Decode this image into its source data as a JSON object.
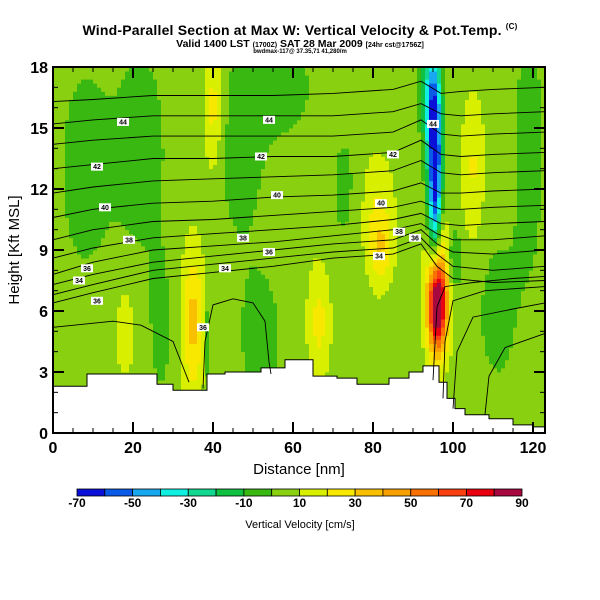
{
  "chart_data": {
    "type": "heatmap",
    "title": "Wind-Parallel Section at Max W: Vertical Velocity & Pot.Temp.",
    "title_suffix": "(C)",
    "subtitle": "Valid 1400 LST",
    "subtitle_paren": "(1700Z)",
    "subtitle_date": "SAT 28 Mar 2009",
    "subtitle_tail": "[24hr cst@1756Z]",
    "annotation": "bwdmax-117@ 37.35,71 41,280/m",
    "xlabel": "Distance [nm]",
    "ylabel": "Height [Kft MSL]",
    "xlim": [
      0,
      123
    ],
    "ylim": [
      0,
      18
    ],
    "xticks": [
      0,
      20,
      40,
      60,
      80,
      100,
      120
    ],
    "yticks": [
      0,
      3,
      6,
      9,
      12,
      15,
      18
    ],
    "colorbar": {
      "label": "Vertical Velocity [cm/s]",
      "levels": [
        -70,
        -60,
        -50,
        -40,
        -30,
        -20,
        -10,
        0,
        10,
        20,
        30,
        40,
        50,
        60,
        70,
        80,
        90
      ],
      "tick_labels": [
        "-70",
        "-50",
        "-30",
        "-10",
        "10",
        "30",
        "50",
        "70",
        "90"
      ],
      "colors": [
        "#0a10d8",
        "#0a5ae8",
        "#18a8f0",
        "#10f0e0",
        "#10d890",
        "#10c040",
        "#38b810",
        "#88d010",
        "#d8f000",
        "#f8e800",
        "#f8c000",
        "#f8a000",
        "#f87000",
        "#f84010",
        "#e80010",
        "#a80840"
      ]
    },
    "background_w": 5,
    "w_features": [
      {
        "name": "updraft-core",
        "x": 96,
        "z": 6.2,
        "sx": 1.6,
        "sz": 1.6,
        "w": 85
      },
      {
        "name": "updraft-plume",
        "x": 96.5,
        "z": 7.8,
        "sx": 2.2,
        "sz": 2.2,
        "w": 30
      },
      {
        "name": "downdraft-core",
        "x": 95.5,
        "z": 12.5,
        "sx": 1.2,
        "sz": 3.2,
        "w": -75
      },
      {
        "name": "downdraft-upper",
        "x": 94.5,
        "z": 16.5,
        "sx": 1.6,
        "sz": 2.0,
        "w": -40
      },
      {
        "name": "updraft-35nm",
        "x": 35,
        "z": 5.5,
        "sx": 2.0,
        "sz": 2.6,
        "w": 28
      },
      {
        "name": "updraft-66nm",
        "x": 66.5,
        "z": 5.5,
        "sx": 2.0,
        "sz": 2.0,
        "w": 18
      },
      {
        "name": "updraft-18nm",
        "x": 18,
        "z": 5,
        "sx": 1.6,
        "sz": 1.5,
        "w": 14
      },
      {
        "name": "updraft-105nm",
        "x": 105,
        "z": 13,
        "sx": 2.0,
        "sz": 2.5,
        "w": 16
      },
      {
        "name": "updraft-40nm-upper",
        "x": 40,
        "z": 16,
        "sx": 1.5,
        "sz": 2.2,
        "w": 20
      },
      {
        "name": "updraft-81nm",
        "x": 81,
        "z": 11,
        "sx": 3,
        "sz": 2,
        "w": 14
      },
      {
        "name": "updraft-81nm-low",
        "x": 82,
        "z": 9,
        "sx": 2,
        "sz": 1.3,
        "w": 18
      },
      {
        "name": "downdraft-20nm-upper",
        "x": 22,
        "z": 14,
        "sx": 5,
        "sz": 4,
        "w": -9
      },
      {
        "name": "downdraft-12nm-upper",
        "x": 8,
        "z": 13,
        "sx": 5,
        "sz": 4,
        "w": -9
      },
      {
        "name": "downdraft-52nm",
        "x": 52,
        "z": 4.5,
        "sx": 4,
        "sz": 2.5,
        "w": -9
      },
      {
        "name": "downdraft-48nm-upper",
        "x": 47,
        "z": 14,
        "sx": 5,
        "sz": 4,
        "w": -8
      },
      {
        "name": "downdraft-27nm",
        "x": 27,
        "z": 5,
        "sx": 2.5,
        "sz": 3,
        "w": -7
      },
      {
        "name": "downdraft-112nm",
        "x": 111,
        "z": 6,
        "sx": 4,
        "sz": 3,
        "w": -8
      },
      {
        "name": "downdraft-118nm-upper",
        "x": 119,
        "z": 14,
        "sx": 3,
        "sz": 5,
        "w": -9
      },
      {
        "name": "downdraft-60nm-top",
        "x": 58,
        "z": 17,
        "sx": 6,
        "sz": 2,
        "w": -8
      },
      {
        "name": "downdraft-72nm",
        "x": 73,
        "z": 12,
        "sx": 3,
        "sz": 2.5,
        "w": -7
      },
      {
        "name": "downdraft-37nm",
        "x": 38.5,
        "z": 4.5,
        "sx": 0.6,
        "sz": 1.3,
        "w": -20
      },
      {
        "name": "downdraft-100nm-mid",
        "x": 100,
        "z": 8.5,
        "sx": 1.4,
        "sz": 1.2,
        "w": -20
      }
    ],
    "terrain": {
      "x": [
        0,
        0,
        8.5,
        8.5,
        26,
        26,
        30,
        30,
        38.5,
        38.5,
        43,
        43,
        52,
        52,
        58,
        58,
        65,
        65,
        71,
        71,
        76,
        76,
        84,
        84,
        89,
        89,
        92.5,
        92.5,
        96.5,
        96.5,
        98.5,
        98.5,
        100.5,
        100.5,
        103,
        103,
        109,
        109,
        115,
        115,
        120,
        120,
        123
      ],
      "z": [
        2.2,
        2.3,
        2.3,
        2.9,
        2.9,
        2.4,
        2.4,
        2.1,
        2.1,
        2.9,
        2.9,
        3.0,
        3.0,
        3.2,
        3.2,
        3.6,
        3.6,
        2.8,
        2.8,
        2.7,
        2.7,
        2.4,
        2.4,
        2.7,
        2.7,
        3.0,
        3.0,
        3.3,
        3.3,
        2.5,
        2.5,
        1.7,
        1.7,
        1.2,
        1.2,
        0.9,
        0.9,
        0.7,
        0.7,
        0.4,
        0.4,
        0.3,
        0.3
      ]
    },
    "theta_contours": [
      {
        "label": "34",
        "pts": [
          [
            0,
            6.4
          ],
          [
            10,
            6.9
          ],
          [
            25,
            7.6
          ],
          [
            40,
            7.9
          ],
          [
            55,
            8.2
          ],
          [
            70,
            8.6
          ],
          [
            85,
            8.8
          ],
          [
            92,
            9.3
          ],
          [
            96,
            8.2
          ],
          [
            100,
            7.6
          ],
          [
            110,
            7.4
          ],
          [
            123,
            7.5
          ]
        ]
      },
      {
        "label": "",
        "pts": [
          [
            0,
            6.8
          ],
          [
            10,
            7.3
          ],
          [
            25,
            8.0
          ],
          [
            40,
            8.3
          ],
          [
            55,
            8.6
          ],
          [
            70,
            8.9
          ],
          [
            85,
            9.1
          ],
          [
            92,
            9.6
          ],
          [
            96,
            8.8
          ],
          [
            100,
            8.2
          ],
          [
            110,
            8.0
          ],
          [
            123,
            8.2
          ]
        ]
      },
      {
        "label": "36",
        "pts": [
          [
            0,
            7.3
          ],
          [
            10,
            7.8
          ],
          [
            25,
            8.4
          ],
          [
            40,
            8.7
          ],
          [
            55,
            9.0
          ],
          [
            70,
            9.3
          ],
          [
            85,
            9.5
          ],
          [
            92,
            10.0
          ],
          [
            96,
            9.3
          ],
          [
            100,
            8.9
          ],
          [
            110,
            8.8
          ],
          [
            123,
            9.0
          ]
        ]
      },
      {
        "label": "",
        "pts": [
          [
            0,
            7.8
          ],
          [
            10,
            8.4
          ],
          [
            25,
            9.0
          ],
          [
            40,
            9.2
          ],
          [
            55,
            9.4
          ],
          [
            70,
            9.7
          ],
          [
            85,
            10.0
          ],
          [
            92,
            10.3
          ],
          [
            96,
            9.8
          ],
          [
            100,
            9.5
          ],
          [
            110,
            9.5
          ],
          [
            123,
            9.7
          ]
        ]
      },
      {
        "label": "38",
        "pts": [
          [
            0,
            8.6
          ],
          [
            10,
            9.1
          ],
          [
            25,
            9.6
          ],
          [
            40,
            9.8
          ],
          [
            55,
            10.0
          ],
          [
            70,
            10.2
          ],
          [
            85,
            10.5
          ],
          [
            92,
            10.8
          ],
          [
            97,
            10.3
          ],
          [
            102,
            10.2
          ],
          [
            110,
            10.3
          ],
          [
            123,
            10.4
          ]
        ]
      },
      {
        "label": "",
        "pts": [
          [
            0,
            9.5
          ],
          [
            10,
            10.0
          ],
          [
            25,
            10.4
          ],
          [
            40,
            10.5
          ],
          [
            55,
            10.7
          ],
          [
            70,
            10.9
          ],
          [
            85,
            11.1
          ],
          [
            92,
            11.4
          ],
          [
            97,
            11.0
          ],
          [
            102,
            11.0
          ],
          [
            110,
            11.1
          ],
          [
            123,
            11.2
          ]
        ]
      },
      {
        "label": "40",
        "pts": [
          [
            0,
            10.6
          ],
          [
            10,
            11.0
          ],
          [
            25,
            11.3
          ],
          [
            40,
            11.4
          ],
          [
            55,
            11.6
          ],
          [
            70,
            11.7
          ],
          [
            85,
            11.9
          ],
          [
            92,
            12.3
          ],
          [
            97,
            11.8
          ],
          [
            102,
            11.8
          ],
          [
            110,
            11.9
          ],
          [
            123,
            12.0
          ]
        ]
      },
      {
        "label": "",
        "pts": [
          [
            0,
            11.8
          ],
          [
            10,
            12.1
          ],
          [
            25,
            12.4
          ],
          [
            40,
            12.5
          ],
          [
            55,
            12.6
          ],
          [
            70,
            12.7
          ],
          [
            85,
            12.9
          ],
          [
            92,
            13.4
          ],
          [
            97,
            12.8
          ],
          [
            102,
            12.7
          ],
          [
            110,
            12.8
          ],
          [
            123,
            12.9
          ]
        ]
      },
      {
        "label": "42",
        "pts": [
          [
            0,
            13.0
          ],
          [
            10,
            13.2
          ],
          [
            25,
            13.5
          ],
          [
            40,
            13.5
          ],
          [
            55,
            13.6
          ],
          [
            70,
            13.6
          ],
          [
            85,
            13.8
          ],
          [
            92,
            14.4
          ],
          [
            97,
            13.7
          ],
          [
            102,
            13.6
          ],
          [
            110,
            13.7
          ],
          [
            123,
            13.8
          ]
        ]
      },
      {
        "label": "",
        "pts": [
          [
            0,
            14.2
          ],
          [
            10,
            14.4
          ],
          [
            25,
            14.6
          ],
          [
            40,
            14.6
          ],
          [
            55,
            14.6
          ],
          [
            70,
            14.6
          ],
          [
            85,
            14.8
          ],
          [
            92,
            15.4
          ],
          [
            97,
            14.7
          ],
          [
            102,
            14.6
          ],
          [
            110,
            14.7
          ],
          [
            123,
            14.8
          ]
        ]
      },
      {
        "label": "44",
        "pts": [
          [
            0,
            15.2
          ],
          [
            10,
            15.4
          ],
          [
            25,
            15.6
          ],
          [
            40,
            15.6
          ],
          [
            55,
            15.6
          ],
          [
            70,
            15.6
          ],
          [
            85,
            15.8
          ],
          [
            92,
            16.2
          ],
          [
            97,
            15.7
          ],
          [
            102,
            15.6
          ],
          [
            110,
            15.7
          ],
          [
            123,
            15.8
          ]
        ]
      },
      {
        "label": "",
        "pts": [
          [
            0,
            16.3
          ],
          [
            10,
            16.4
          ],
          [
            25,
            16.6
          ],
          [
            40,
            16.6
          ],
          [
            55,
            16.6
          ],
          [
            70,
            16.7
          ],
          [
            85,
            16.9
          ],
          [
            92,
            17.3
          ],
          [
            97,
            16.7
          ],
          [
            102,
            16.8
          ],
          [
            110,
            16.9
          ],
          [
            123,
            17.0
          ]
        ]
      },
      {
        "label": "36",
        "pts": [
          [
            0,
            5.2
          ],
          [
            15,
            5.5
          ],
          [
            22,
            5.3
          ],
          [
            30,
            4.5
          ],
          [
            33,
            3.0
          ],
          [
            34,
            2.5
          ]
        ]
      },
      {
        "label": "36",
        "pts": [
          [
            37.5,
            2.2
          ],
          [
            38,
            4.5
          ],
          [
            40,
            6.3
          ],
          [
            45,
            6.6
          ],
          [
            50,
            6.4
          ],
          [
            53,
            5.5
          ],
          [
            54,
            3.5
          ],
          [
            54.5,
            2.9
          ]
        ]
      },
      {
        "label": "",
        "pts": [
          [
            95,
            2.6
          ],
          [
            96,
            6.2
          ],
          [
            98,
            7.2
          ],
          [
            105,
            7.4
          ],
          [
            115,
            7.6
          ],
          [
            123,
            7.7
          ]
        ]
      },
      {
        "label": "",
        "pts": [
          [
            97.5,
            1.7
          ],
          [
            98,
            4.5
          ],
          [
            100,
            6.5
          ],
          [
            108,
            7.0
          ],
          [
            123,
            7.2
          ]
        ]
      },
      {
        "label": "",
        "pts": [
          [
            100,
            1.2
          ],
          [
            101,
            4.0
          ],
          [
            105,
            5.7
          ],
          [
            115,
            6.1
          ],
          [
            123,
            6.4
          ]
        ]
      },
      {
        "label": "",
        "pts": [
          [
            108,
            0.9
          ],
          [
            109,
            2.8
          ],
          [
            113,
            4.2
          ],
          [
            123,
            4.9
          ]
        ]
      }
    ],
    "contour_labels": [
      {
        "text": "44",
        "x": 17.5,
        "z": 15.3
      },
      {
        "text": "44",
        "x": 54,
        "z": 15.4
      },
      {
        "text": "44",
        "x": 95,
        "z": 15.2
      },
      {
        "text": "42",
        "x": 11,
        "z": 13.1
      },
      {
        "text": "42",
        "x": 52,
        "z": 13.6
      },
      {
        "text": "42",
        "x": 85,
        "z": 13.7
      },
      {
        "text": "40",
        "x": 13,
        "z": 11.1
      },
      {
        "text": "40",
        "x": 56,
        "z": 11.7
      },
      {
        "text": "40",
        "x": 82,
        "z": 11.3
      },
      {
        "text": "38",
        "x": 19,
        "z": 9.5
      },
      {
        "text": "38",
        "x": 47.5,
        "z": 9.6
      },
      {
        "text": "38",
        "x": 86.5,
        "z": 9.9
      },
      {
        "text": "36",
        "x": 8.5,
        "z": 8.1
      },
      {
        "text": "36",
        "x": 54,
        "z": 8.9
      },
      {
        "text": "36",
        "x": 90.5,
        "z": 9.6
      },
      {
        "text": "34",
        "x": 6.5,
        "z": 7.5
      },
      {
        "text": "34",
        "x": 43,
        "z": 8.1
      },
      {
        "text": "34",
        "x": 81.5,
        "z": 8.7
      },
      {
        "text": "36",
        "x": 11,
        "z": 6.5
      },
      {
        "text": "36",
        "x": 37.5,
        "z": 5.2
      }
    ]
  }
}
